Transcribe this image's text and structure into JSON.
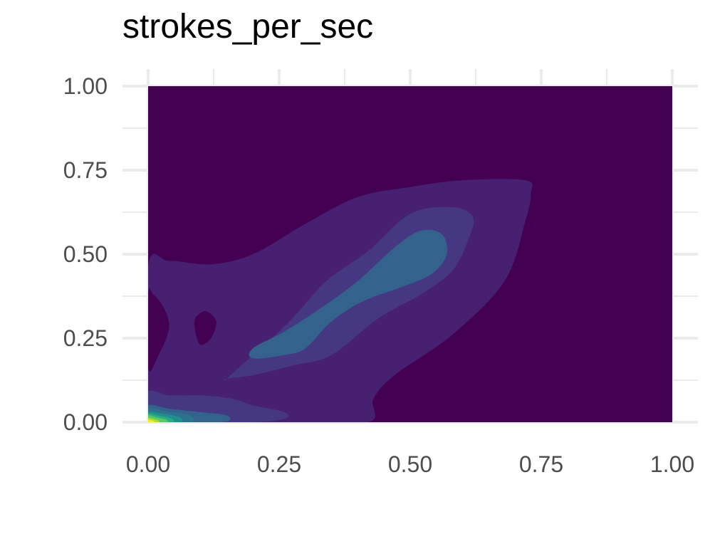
{
  "chart_data": {
    "type": "density-2d-filled",
    "title": "strokes_per_sec",
    "xlabel": "",
    "ylabel": "",
    "xlim": [
      0,
      1
    ],
    "ylim": [
      0,
      1
    ],
    "x_ticks": [
      "0.00",
      "0.25",
      "0.50",
      "0.75",
      "1.00"
    ],
    "y_ticks": [
      "0.00",
      "0.25",
      "0.50",
      "0.75",
      "1.00"
    ],
    "grid": true,
    "legend": "none",
    "colormap": "viridis",
    "colors": {
      "level_1": "#440154",
      "level_2": "#482071",
      "level_3": "#453781",
      "level_4": "#3B528B",
      "level_5": "#33638D",
      "level_6": "#2C728E",
      "level_7": "#21908C",
      "level_8": "#27AD81",
      "level_9": "#5DC863",
      "level_10": "#AADC32",
      "level_11": "#FDE725",
      "grid": "#ebebeb",
      "tick_text": "#4d4d4d"
    },
    "density_regions": [
      {
        "level": 2,
        "outline": [
          [
            0,
            0.46
          ],
          [
            0.04,
            0.48
          ],
          [
            0.12,
            0.47
          ],
          [
            0.2,
            0.5
          ],
          [
            0.3,
            0.59
          ],
          [
            0.4,
            0.67
          ],
          [
            0.5,
            0.7
          ],
          [
            0.6,
            0.72
          ],
          [
            0.72,
            0.72
          ],
          [
            0.73,
            0.68
          ],
          [
            0.72,
            0.6
          ],
          [
            0.68,
            0.42
          ],
          [
            0.58,
            0.26
          ],
          [
            0.47,
            0.14
          ],
          [
            0.43,
            0.07
          ],
          [
            0.42,
            0
          ],
          [
            0.26,
            0
          ],
          [
            0.16,
            0
          ],
          [
            0,
            0
          ]
        ],
        "holes": [
          [
            [
              0.09,
              0.31
            ],
            [
              0.11,
              0.33
            ],
            [
              0.13,
              0.3
            ],
            [
              0.12,
              0.25
            ],
            [
              0.1,
              0.23
            ],
            [
              0.09,
              0.27
            ]
          ],
          [
            [
              0,
              0.16
            ],
            [
              0.02,
              0.2
            ],
            [
              0.04,
              0.28
            ],
            [
              0.03,
              0.34
            ],
            [
              0.01,
              0.38
            ],
            [
              0,
              0.38
            ]
          ]
        ]
      },
      {
        "level": 3,
        "outline": [
          [
            0.15,
            0.13
          ],
          [
            0.2,
            0.2
          ],
          [
            0.27,
            0.3
          ],
          [
            0.34,
            0.42
          ],
          [
            0.42,
            0.51
          ],
          [
            0.5,
            0.62
          ],
          [
            0.58,
            0.64
          ],
          [
            0.62,
            0.61
          ],
          [
            0.61,
            0.54
          ],
          [
            0.58,
            0.45
          ],
          [
            0.52,
            0.38
          ],
          [
            0.44,
            0.31
          ],
          [
            0.35,
            0.2
          ],
          [
            0.28,
            0.17
          ],
          [
            0.2,
            0.14
          ],
          [
            0.15,
            0.13
          ]
        ]
      },
      {
        "level": 3,
        "outline": [
          [
            0,
            0.09
          ],
          [
            0.04,
            0.08
          ],
          [
            0.1,
            0.08
          ],
          [
            0.16,
            0.07
          ],
          [
            0.2,
            0.05
          ],
          [
            0.26,
            0.03
          ],
          [
            0.26,
            0.01
          ],
          [
            0.2,
            0
          ],
          [
            0.1,
            0
          ],
          [
            0,
            0
          ]
        ]
      },
      {
        "level": 5,
        "outline": [
          [
            0.2,
            0.22
          ],
          [
            0.26,
            0.27
          ],
          [
            0.33,
            0.34
          ],
          [
            0.4,
            0.42
          ],
          [
            0.47,
            0.52
          ],
          [
            0.52,
            0.57
          ],
          [
            0.56,
            0.56
          ],
          [
            0.57,
            0.5
          ],
          [
            0.54,
            0.44
          ],
          [
            0.48,
            0.4
          ],
          [
            0.41,
            0.36
          ],
          [
            0.35,
            0.3
          ],
          [
            0.3,
            0.22
          ],
          [
            0.26,
            0.2
          ],
          [
            0.2,
            0.19
          ]
        ]
      },
      {
        "level": 5,
        "outline": [
          [
            0,
            0.05
          ],
          [
            0.04,
            0.04
          ],
          [
            0.1,
            0.03
          ],
          [
            0.15,
            0.02
          ],
          [
            0.14,
            0
          ],
          [
            0,
            0
          ]
        ]
      },
      {
        "level": 6,
        "outline": [
          [
            0,
            0.04
          ],
          [
            0.04,
            0.03
          ],
          [
            0.08,
            0.02
          ],
          [
            0.08,
            0
          ],
          [
            0,
            0
          ]
        ]
      },
      {
        "level": 7,
        "outline": [
          [
            0,
            0.03
          ],
          [
            0.03,
            0.025
          ],
          [
            0.06,
            0.015
          ],
          [
            0.06,
            0
          ],
          [
            0,
            0
          ]
        ]
      },
      {
        "level": 8,
        "outline": [
          [
            0,
            0.025
          ],
          [
            0.02,
            0.02
          ],
          [
            0.045,
            0.01
          ],
          [
            0.045,
            0
          ],
          [
            0,
            0
          ]
        ]
      },
      {
        "level": 9,
        "outline": [
          [
            0,
            0.02
          ],
          [
            0.015,
            0.015
          ],
          [
            0.035,
            0.007
          ],
          [
            0.035,
            0
          ],
          [
            0,
            0
          ]
        ]
      },
      {
        "level": 10,
        "outline": [
          [
            0,
            0.012
          ],
          [
            0.01,
            0.01
          ],
          [
            0.02,
            0.005
          ],
          [
            0.02,
            0
          ],
          [
            0,
            0
          ]
        ]
      },
      {
        "level": 11,
        "outline": [
          [
            0,
            0.007
          ],
          [
            0.007,
            0.006
          ],
          [
            0.012,
            0.003
          ],
          [
            0.012,
            0
          ],
          [
            0,
            0
          ]
        ]
      }
    ]
  }
}
